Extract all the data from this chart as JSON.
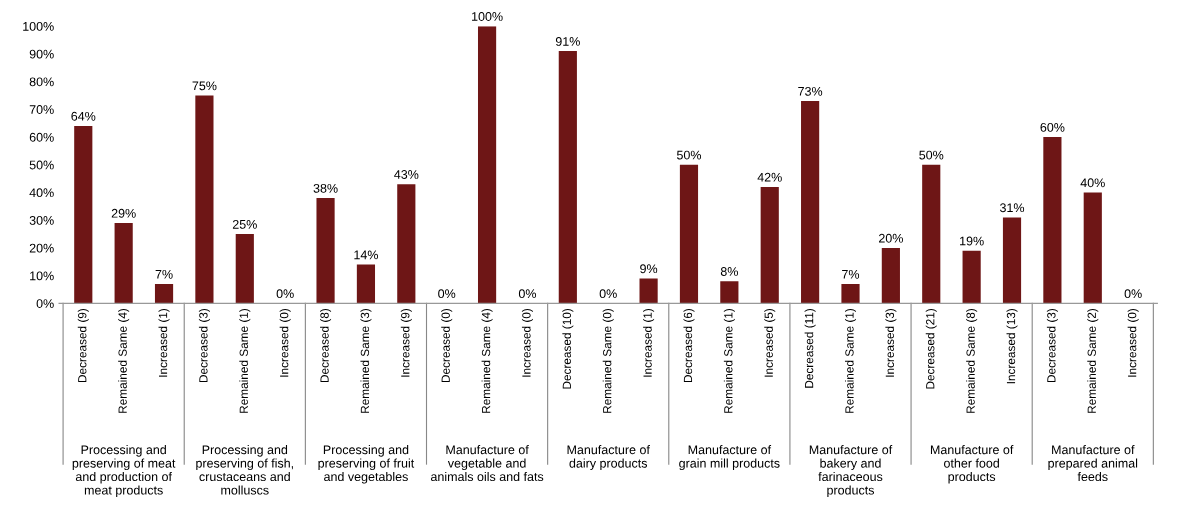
{
  "chart_data": {
    "type": "bar",
    "categories": [
      "Decreased (9)",
      "Remained Same (4)",
      "Increased (1)",
      "Decreased (3)",
      "Remained Same (1)",
      "Increased (0)",
      "Decreased (8)",
      "Remained Same (3)",
      "Increased (9)",
      "Decreased (0)",
      "Remained Same (4)",
      "Increased (0)",
      "Decreased (10)",
      "Remained Same (0)",
      "Increased (1)",
      "Decreased (6)",
      "Remained Same (1)",
      "Increased (5)",
      "Decreased (11)",
      "Remained Same (1)",
      "Increased (3)",
      "Decreased (21)",
      "Remained Same (8)",
      "Increased (13)",
      "Decreased (3)",
      "Remained Same (2)",
      "Increased (0)"
    ],
    "values": [
      64,
      29,
      7,
      75,
      25,
      0,
      38,
      14,
      43,
      0,
      100,
      0,
      91,
      0,
      9,
      50,
      8,
      42,
      73,
      7,
      20,
      50,
      19,
      31,
      60,
      40,
      0
    ],
    "value_labels": [
      "64%",
      "29%",
      "7%",
      "75%",
      "25%",
      "0%",
      "38%",
      "14%",
      "43%",
      "0%",
      "100%",
      "0%",
      "91%",
      "0%",
      "9%",
      "50%",
      "8%",
      "42%",
      "73%",
      "7%",
      "20%",
      "50%",
      "19%",
      "31%",
      "60%",
      "40%",
      "0%"
    ],
    "color": "#6e1616",
    "ylim": [
      0,
      100
    ],
    "yticks": [
      {
        "value": 0,
        "label": "0%"
      },
      {
        "value": 10,
        "label": "10%"
      },
      {
        "value": 20,
        "label": "20%"
      },
      {
        "value": 30,
        "label": "30%"
      },
      {
        "value": 40,
        "label": "40%"
      },
      {
        "value": 50,
        "label": "50%"
      },
      {
        "value": 60,
        "label": "60%"
      },
      {
        "value": 70,
        "label": "70%"
      },
      {
        "value": 80,
        "label": "80%"
      },
      {
        "value": 90,
        "label": "90%"
      },
      {
        "value": 100,
        "label": "100%"
      }
    ],
    "annotations": [
      "Processing and\npreserving of meat\nand production of\nmeat products",
      "Processing and\npreserving of fish,\ncrustaceans and\nmolluscs",
      "Processing and\npreserving of fruit\nand vegetables",
      "Manufacture of\nvegetable and\nanimals oils and fats",
      "Manufacture of\ndairy products",
      "Manufacture of\ngrain mill products",
      "Manufacture of\nbakery and\nfarinaceous\nproducts",
      "Manufacture of\nother food\nproducts",
      "Manufacture of\nprepared animal\nfeeds"
    ],
    "grid": false,
    "legend": false
  }
}
